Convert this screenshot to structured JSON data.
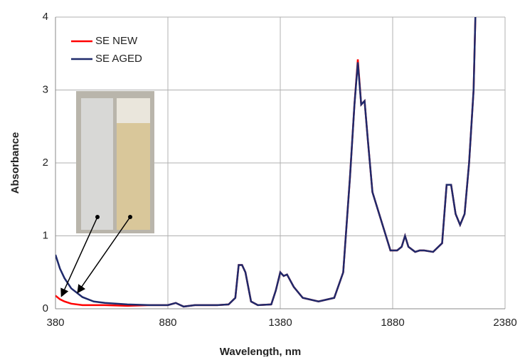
{
  "chart_data": {
    "type": "line",
    "x_label": "Wavelength, nm",
    "y_label": "Absorbance",
    "x": [
      380,
      400,
      420,
      450,
      500,
      550,
      600,
      700,
      800,
      880,
      915,
      950,
      1000,
      1100,
      1150,
      1180,
      1195,
      1210,
      1225,
      1250,
      1280,
      1340,
      1360,
      1380,
      1395,
      1410,
      1440,
      1480,
      1550,
      1620,
      1660,
      1690,
      1710,
      1725,
      1740,
      1755,
      1770,
      1790,
      1820,
      1840,
      1870,
      1900,
      1920,
      1935,
      1950,
      1980,
      2000,
      2020,
      2060,
      2100,
      2120,
      2140,
      2160,
      2180,
      2200,
      2220,
      2240,
      2248
    ],
    "series": [
      {
        "name": "SE NEW",
        "color": "#ff0000",
        "values": [
          0.18,
          0.13,
          0.1,
          0.07,
          0.05,
          0.05,
          0.05,
          0.04,
          0.05,
          0.05,
          0.08,
          0.03,
          0.05,
          0.05,
          0.06,
          0.15,
          0.6,
          0.6,
          0.5,
          0.1,
          0.05,
          0.06,
          0.25,
          0.5,
          0.45,
          0.47,
          0.3,
          0.15,
          0.1,
          0.15,
          0.5,
          1.8,
          2.8,
          3.42,
          2.8,
          2.85,
          2.3,
          1.6,
          1.3,
          1.1,
          0.8,
          0.8,
          0.85,
          1.0,
          0.85,
          0.78,
          0.8,
          0.8,
          0.78,
          0.9,
          1.7,
          1.7,
          1.3,
          1.15,
          1.3,
          2.0,
          3.0,
          4.0
        ]
      },
      {
        "name": "SE AGED",
        "color": "#1f2a6b",
        "values": [
          0.74,
          0.55,
          0.42,
          0.28,
          0.16,
          0.1,
          0.08,
          0.06,
          0.05,
          0.05,
          0.08,
          0.03,
          0.05,
          0.05,
          0.06,
          0.15,
          0.6,
          0.6,
          0.5,
          0.1,
          0.05,
          0.06,
          0.25,
          0.5,
          0.45,
          0.47,
          0.3,
          0.15,
          0.1,
          0.15,
          0.5,
          1.8,
          2.8,
          3.38,
          2.8,
          2.85,
          2.3,
          1.6,
          1.3,
          1.1,
          0.8,
          0.8,
          0.85,
          1.0,
          0.85,
          0.78,
          0.8,
          0.8,
          0.78,
          0.9,
          1.7,
          1.7,
          1.3,
          1.15,
          1.3,
          2.0,
          3.0,
          4.0
        ]
      }
    ],
    "xlim": [
      380,
      2380
    ],
    "ylim": [
      0,
      4
    ],
    "xticks": [
      380,
      880,
      1380,
      1880,
      2380
    ],
    "yticks": [
      0,
      1,
      2,
      3,
      4
    ],
    "grid": true
  }
}
